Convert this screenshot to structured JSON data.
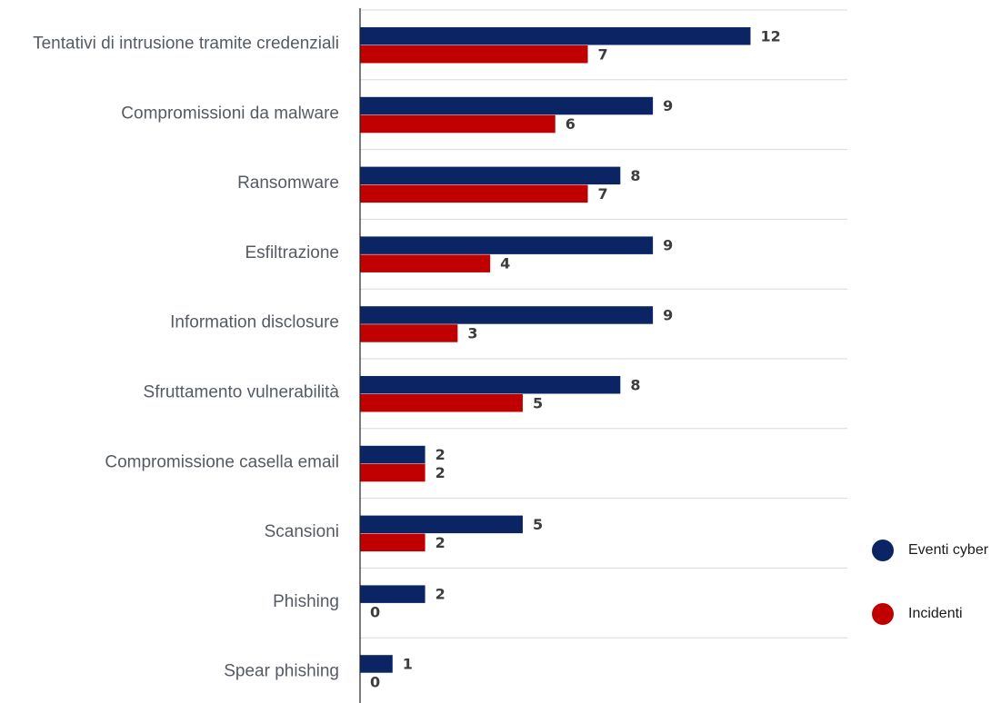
{
  "chart_data": {
    "type": "bar",
    "orientation": "horizontal",
    "categories": [
      "Tentativi di intrusione tramite credenziali",
      "Compromissioni da malware",
      "Ransomware",
      "Esfiltrazione",
      "Information disclosure",
      "Sfruttamento vulnerabilità",
      "Compromissione casella email",
      "Scansioni",
      "Phishing",
      "Spear phishing"
    ],
    "series": [
      {
        "name": "Eventi cyber",
        "color": "#0b2463",
        "values": [
          12,
          9,
          8,
          9,
          9,
          8,
          2,
          5,
          2,
          1
        ]
      },
      {
        "name": "Incidenti",
        "color": "#c00000",
        "values": [
          7,
          6,
          7,
          4,
          3,
          5,
          2,
          2,
          0,
          0
        ]
      }
    ],
    "xlim": [
      0,
      15
    ],
    "grid": true,
    "legend_position": "right"
  }
}
